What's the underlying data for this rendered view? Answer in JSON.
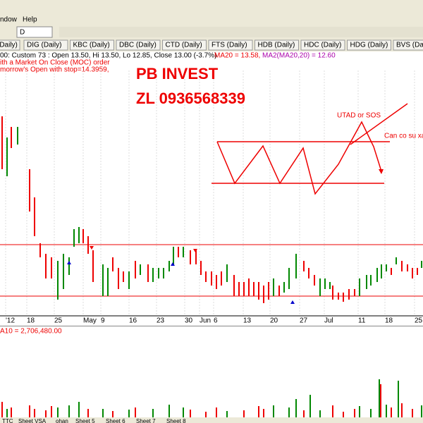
{
  "menu": [
    "ndow",
    "Help"
  ],
  "toolbar": {
    "interval": "D"
  },
  "tabs": [
    "(Daily)",
    "DIG (Daily)",
    "KBC (Daily)",
    "DBC (Daily)",
    "CTD (Daily)",
    "FTS (Daily)",
    "HDB (Daily)",
    "HDC (Daily)",
    "HDG (Daily)",
    "BVS (Daily)"
  ],
  "info": {
    "line1": "00: Custom 73 : Open 13.50, Hi 13.50, Lo 12.85, Close 13.00 (-3.7%)",
    "ma20": "MA20 = 13.58,",
    "ma2": "MA2(MA20,20) = 12.60",
    "line2": "ith a Market On Close (MOC) order",
    "line3": "morrow's Open with stop=14.3959,"
  },
  "overlay": {
    "title": "PB INVEST",
    "phone": "ZL 0936568339",
    "utad": "UTAD or SOS",
    "note": "Can co su xac"
  },
  "axis": {
    "dates": [
      "'12",
      "18",
      "25",
      "May",
      "9",
      "16",
      "23",
      "30",
      "Jun",
      "6",
      "13",
      "20",
      "27",
      "Jul",
      "11",
      "18",
      "25"
    ]
  },
  "volume": {
    "label": "A10 = 2,706,480.00"
  },
  "sheets": [
    "TTC",
    "Sheet VSA",
    "ohan",
    "Sheet 5",
    "Sheet 6",
    "Sheet 7",
    "Sheet 8"
  ]
}
